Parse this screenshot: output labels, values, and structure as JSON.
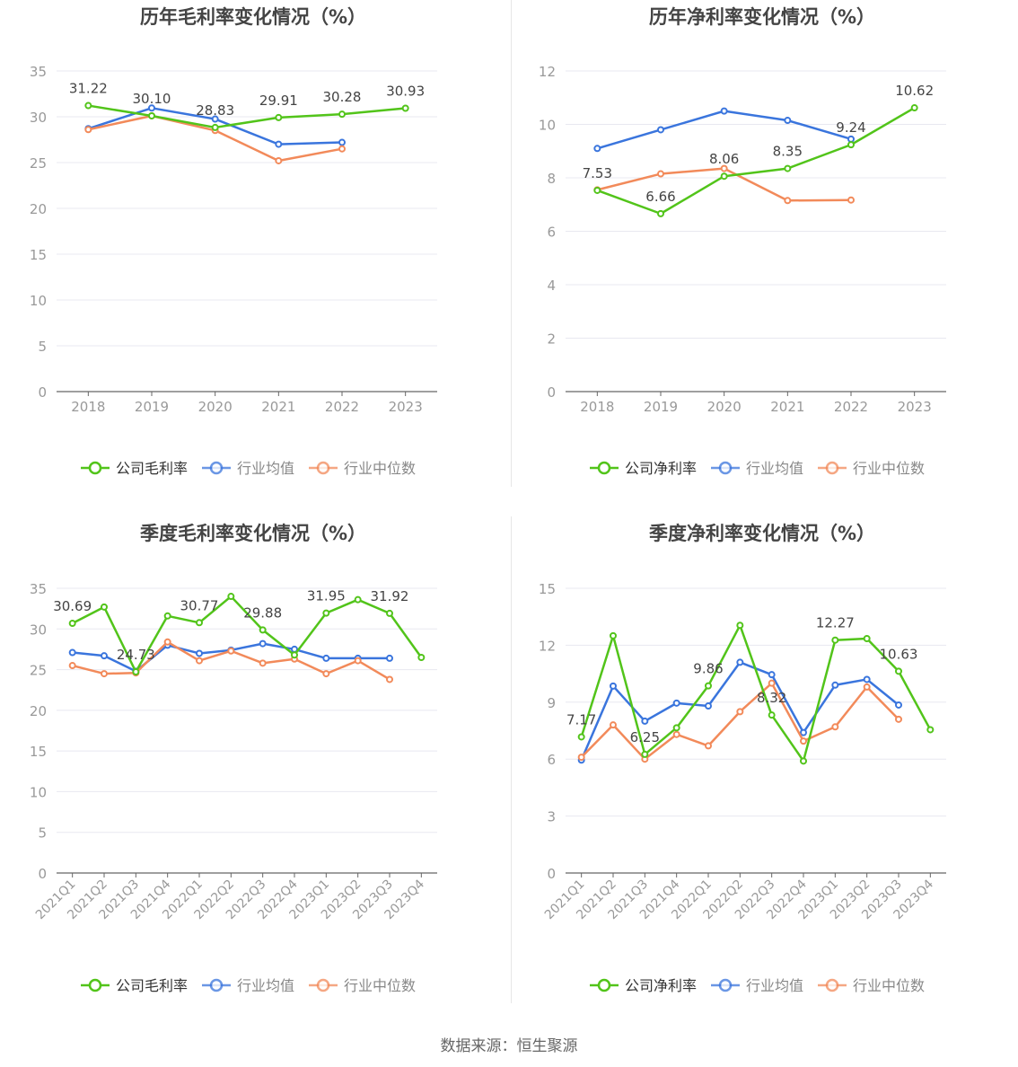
{
  "colors": {
    "company": "#52c41a",
    "industry_avg": "#3a75dd",
    "industry_median": "#f28a5a",
    "grid": "#e8e8f0",
    "axis": "#666666",
    "tick_text": "#999999",
    "title_text": "#444444",
    "label_text": "#444444"
  },
  "source_text": "数据来源：恒生聚源",
  "chart_data": [
    {
      "type": "line",
      "title": "历年毛利率变化情况（%）",
      "categories": [
        "2018",
        "2019",
        "2020",
        "2021",
        "2022",
        "2023"
      ],
      "ylim": [
        0,
        35
      ],
      "yticks": [
        0,
        5,
        10,
        15,
        20,
        25,
        30,
        35
      ],
      "ytick_labels": [
        "0",
        "5",
        "10",
        "15",
        "20",
        "25",
        "30",
        "35"
      ],
      "grid": true,
      "legend_position": "bottom",
      "legend": [
        "公司毛利率",
        "行业均值",
        "行业中位数"
      ],
      "series": [
        {
          "name": "公司毛利率",
          "values": [
            31.22,
            30.1,
            28.83,
            29.91,
            30.28,
            30.93
          ]
        },
        {
          "name": "行业均值",
          "values": [
            28.7,
            30.95,
            29.75,
            27.0,
            27.2,
            null
          ]
        },
        {
          "name": "行业中位数",
          "values": [
            28.6,
            30.1,
            28.5,
            25.2,
            26.5,
            null
          ]
        }
      ],
      "data_labels": [
        "31.22",
        "30.10",
        "28.83",
        "29.91",
        "30.28",
        "30.93"
      ],
      "label_indices": [
        0,
        1,
        2,
        3,
        4,
        5
      ]
    },
    {
      "type": "line",
      "title": "历年净利率变化情况（%）",
      "categories": [
        "2018",
        "2019",
        "2020",
        "2021",
        "2022",
        "2023"
      ],
      "ylim": [
        0,
        12
      ],
      "yticks": [
        0,
        2,
        4,
        6,
        8,
        10,
        12
      ],
      "ytick_labels": [
        "0",
        "2",
        "4",
        "6",
        "8",
        "10",
        "12"
      ],
      "grid": true,
      "legend_position": "bottom",
      "legend": [
        "公司净利率",
        "行业均值",
        "行业中位数"
      ],
      "series": [
        {
          "name": "公司净利率",
          "values": [
            7.53,
            6.66,
            8.06,
            8.35,
            9.24,
            10.62
          ]
        },
        {
          "name": "行业均值",
          "values": [
            9.1,
            9.8,
            10.5,
            10.15,
            9.45,
            null
          ]
        },
        {
          "name": "行业中位数",
          "values": [
            7.55,
            8.15,
            8.35,
            7.15,
            7.17,
            null
          ]
        }
      ],
      "data_labels": [
        "7.53",
        "6.66",
        "8.06",
        "8.35",
        "9.24",
        "10.62"
      ],
      "label_indices": [
        0,
        1,
        2,
        3,
        4,
        5
      ]
    },
    {
      "type": "line",
      "title": "季度毛利率变化情况（%）",
      "categories": [
        "2021Q1",
        "2021Q2",
        "2021Q3",
        "2021Q4",
        "2022Q1",
        "2022Q2",
        "2022Q3",
        "2022Q4",
        "2023Q1",
        "2023Q2",
        "2023Q3",
        "2023Q4"
      ],
      "ylim": [
        0,
        35
      ],
      "yticks": [
        0,
        5,
        10,
        15,
        20,
        25,
        30,
        35
      ],
      "ytick_labels": [
        "0",
        "5",
        "10",
        "15",
        "20",
        "25",
        "30",
        "35"
      ],
      "grid": true,
      "legend_position": "bottom",
      "legend": [
        "公司毛利率",
        "行业均值",
        "行业中位数"
      ],
      "series": [
        {
          "name": "公司毛利率",
          "values": [
            30.69,
            32.7,
            24.73,
            31.6,
            30.77,
            34.0,
            29.88,
            26.8,
            31.95,
            33.6,
            31.92,
            26.5
          ]
        },
        {
          "name": "行业均值",
          "values": [
            27.1,
            26.7,
            24.8,
            28.0,
            27.0,
            27.4,
            28.2,
            27.5,
            26.4,
            26.4,
            26.4,
            null
          ]
        },
        {
          "name": "行业中位数",
          "values": [
            25.5,
            24.5,
            24.6,
            28.4,
            26.1,
            27.3,
            25.8,
            26.3,
            24.5,
            26.1,
            23.8,
            null
          ]
        }
      ],
      "data_labels": [
        "30.69",
        "24.73",
        "30.77",
        "29.88",
        "31.95",
        "31.92"
      ],
      "label_indices": [
        0,
        2,
        4,
        6,
        8,
        10
      ]
    },
    {
      "type": "line",
      "title": "季度净利率变化情况（%）",
      "categories": [
        "2021Q1",
        "2021Q2",
        "2021Q3",
        "2021Q4",
        "2022Q1",
        "2022Q2",
        "2022Q3",
        "2022Q4",
        "2023Q1",
        "2023Q2",
        "2023Q3",
        "2023Q4"
      ],
      "ylim": [
        0,
        15
      ],
      "yticks": [
        0,
        3,
        6,
        9,
        12,
        15
      ],
      "ytick_labels": [
        "0",
        "3",
        "6",
        "9",
        "12",
        "15"
      ],
      "grid": true,
      "legend_position": "bottom",
      "legend": [
        "公司净利率",
        "行业均值",
        "行业中位数"
      ],
      "series": [
        {
          "name": "公司净利率",
          "values": [
            7.17,
            12.5,
            6.25,
            7.65,
            9.86,
            13.05,
            8.32,
            5.9,
            12.27,
            12.35,
            10.63,
            7.55
          ]
        },
        {
          "name": "行业均值",
          "values": [
            5.95,
            9.85,
            8.0,
            8.95,
            8.8,
            11.1,
            10.45,
            7.4,
            9.9,
            10.2,
            8.85,
            null
          ]
        },
        {
          "name": "行业中位数",
          "values": [
            6.1,
            7.8,
            6.0,
            7.3,
            6.7,
            8.5,
            10.0,
            6.95,
            7.7,
            9.8,
            8.1,
            null
          ]
        }
      ],
      "data_labels": [
        "7.17",
        "6.25",
        "9.86",
        "8.32",
        "12.27",
        "10.63"
      ],
      "label_indices": [
        0,
        2,
        4,
        6,
        8,
        10
      ]
    }
  ]
}
